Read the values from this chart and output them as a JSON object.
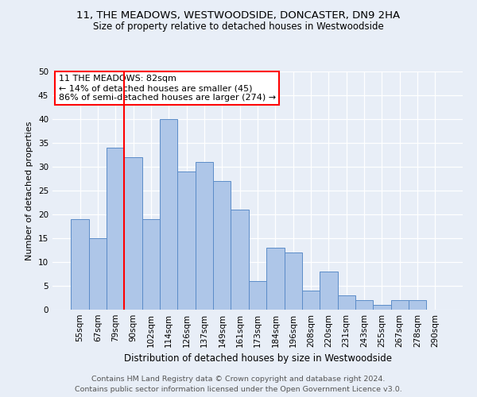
{
  "title": "11, THE MEADOWS, WESTWOODSIDE, DONCASTER, DN9 2HA",
  "subtitle": "Size of property relative to detached houses in Westwoodside",
  "xlabel": "Distribution of detached houses by size in Westwoodside",
  "ylabel": "Number of detached properties",
  "footer_line1": "Contains HM Land Registry data © Crown copyright and database right 2024.",
  "footer_line2": "Contains public sector information licensed under the Open Government Licence v3.0.",
  "categories": [
    "55sqm",
    "67sqm",
    "79sqm",
    "90sqm",
    "102sqm",
    "114sqm",
    "126sqm",
    "137sqm",
    "149sqm",
    "161sqm",
    "173sqm",
    "184sqm",
    "196sqm",
    "208sqm",
    "220sqm",
    "231sqm",
    "243sqm",
    "255sqm",
    "267sqm",
    "278sqm",
    "290sqm"
  ],
  "values": [
    19,
    15,
    34,
    32,
    19,
    40,
    29,
    31,
    27,
    21,
    6,
    13,
    12,
    4,
    8,
    3,
    2,
    1,
    2,
    2,
    0
  ],
  "bar_color": "#aec6e8",
  "bar_edge_color": "#5b8cc8",
  "background_color": "#e8eef7",
  "annotation_text_line1": "11 THE MEADOWS: 82sqm",
  "annotation_text_line2": "← 14% of detached houses are smaller (45)",
  "annotation_text_line3": "86% of semi-detached houses are larger (274) →",
  "annotation_box_color": "white",
  "annotation_box_edge": "red",
  "vline_color": "red",
  "ylim": [
    0,
    50
  ],
  "yticks": [
    0,
    5,
    10,
    15,
    20,
    25,
    30,
    35,
    40,
    45,
    50
  ],
  "title_fontsize": 9.5,
  "subtitle_fontsize": 8.5,
  "xlabel_fontsize": 8.5,
  "ylabel_fontsize": 8.0,
  "tick_fontsize": 7.5,
  "annotation_fontsize": 8.0,
  "footer_fontsize": 6.8
}
